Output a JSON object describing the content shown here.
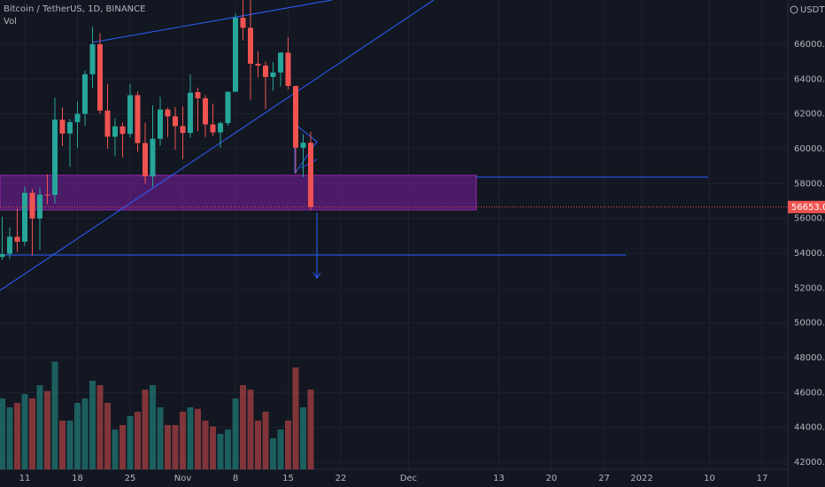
{
  "chart_data": {
    "type": "candlestick",
    "title": "Bitcoin / TetherUS, 1D, BINANCE",
    "volume_label": "Vol",
    "currency": "USDT",
    "up_color": "#26a69a",
    "down_color": "#ef5350",
    "x": [
      "Oct 8",
      "Oct 9",
      "Oct 10",
      "Oct 11",
      "Oct 12",
      "Oct 13",
      "Oct 14",
      "Oct 15",
      "Oct 16",
      "Oct 17",
      "Oct 18",
      "Oct 19",
      "Oct 20",
      "Oct 21",
      "Oct 22",
      "Oct 23",
      "Oct 24",
      "Oct 25",
      "Oct 26",
      "Oct 27",
      "Oct 28",
      "Oct 29",
      "Oct 30",
      "Oct 31",
      "Nov 1",
      "Nov 2",
      "Nov 3",
      "Nov 4",
      "Nov 5",
      "Nov 6",
      "Nov 7",
      "Nov 8",
      "Nov 9",
      "Nov 10",
      "Nov 11",
      "Nov 12",
      "Nov 13",
      "Nov 14",
      "Nov 15",
      "Nov 16",
      "Nov 17",
      "Nov 18"
    ],
    "open": [
      53785,
      53965,
      54942,
      54659,
      57471,
      55996,
      57370,
      57347,
      61672,
      60875,
      61528,
      62005,
      64280,
      66002,
      62193,
      60689,
      61286,
      60852,
      63079,
      60328,
      58413,
      60575,
      62253,
      61859,
      61300,
      60911,
      63254,
      62896,
      61395,
      60940,
      61470,
      63273,
      67525,
      66947,
      64882,
      64774,
      64122,
      64380,
      65519,
      63606,
      60059,
      60345
    ],
    "high": [
      56100,
      55489,
      56561,
      57839,
      57680,
      57777,
      58532,
      62933,
      62378,
      61718,
      62695,
      64486,
      67000,
      66639,
      63733,
      61747,
      61500,
      63710,
      63293,
      61496,
      62499,
      62980,
      62359,
      62405,
      62437,
      64270,
      63516,
      63086,
      62595,
      61560,
      63286,
      67789,
      68524,
      69000,
      65600,
      65000,
      64990,
      65550,
      66401,
      63617,
      60840,
      60977
    ],
    "low": [
      53617,
      53661,
      54080,
      54415,
      53879,
      54167,
      56818,
      56850,
      60150,
      58963,
      60048,
      61322,
      63482,
      62000,
      60000,
      59562,
      59510,
      60650,
      59817,
      58000,
      57820,
      60174,
      60673,
      59945,
      59405,
      60624,
      61000,
      60677,
      60721,
      60050,
      61322,
      63273,
      66222,
      62822,
      64100,
      62278,
      63333,
      63576,
      63400,
      58574,
      58373,
      56474
    ],
    "close": [
      53951,
      54949,
      54659,
      57471,
      55996,
      57367,
      57347,
      61672,
      60875,
      61528,
      62010,
      64280,
      66001,
      62193,
      60688,
      61286,
      60852,
      63078,
      60328,
      58413,
      60575,
      62253,
      61859,
      61300,
      60911,
      63219,
      62896,
      61395,
      60937,
      61470,
      63273,
      67525,
      66947,
      64882,
      64774,
      64122,
      64380,
      65519,
      63606,
      60058,
      60344,
      56653.01
    ],
    "volume": [
      48000,
      42000,
      45000,
      51000,
      48000,
      57000,
      53000,
      73000,
      33000,
      33000,
      45000,
      48000,
      60000,
      57000,
      45000,
      27000,
      30000,
      36000,
      39000,
      54000,
      57000,
      42000,
      30000,
      30000,
      39000,
      42000,
      41000,
      33000,
      29000,
      24000,
      27000,
      48000,
      57000,
      54000,
      33000,
      39000,
      21000,
      27000,
      33000,
      69000,
      42000,
      54000
    ],
    "ylim": [
      41590,
      68543
    ],
    "y2lim": [
      0,
      318000
    ],
    "yticks": [
      {
        "value": 42000,
        "label": "42000.00"
      },
      {
        "value": 44000,
        "label": "44000.00"
      },
      {
        "value": 46000,
        "label": "46000.00"
      },
      {
        "value": 48000,
        "label": "48000.00"
      },
      {
        "value": 50000,
        "label": "50000.00"
      },
      {
        "value": 52000,
        "label": "52000.00"
      },
      {
        "value": 54000,
        "label": "54000.00"
      },
      {
        "value": 56000,
        "label": "56000.00"
      },
      {
        "value": 58000,
        "label": "58000.00"
      },
      {
        "value": 60000,
        "label": "60000.00"
      },
      {
        "value": 62000,
        "label": "62000.00"
      },
      {
        "value": 64000,
        "label": "64000.00"
      },
      {
        "value": 66000,
        "label": "66000.00"
      }
    ],
    "xticks": [
      {
        "value": "Oct 11",
        "label": "11"
      },
      {
        "value": "Oct 18",
        "label": "18"
      },
      {
        "value": "Oct 25",
        "label": "25"
      },
      {
        "value": "Nov 1",
        "label": "Nov"
      },
      {
        "value": "Nov 8",
        "label": "8"
      },
      {
        "value": "Nov 15",
        "label": "15"
      },
      {
        "value": "Nov 22",
        "label": "22"
      },
      {
        "value": "Dec 1",
        "label": "Dec"
      },
      {
        "value": "Dec 13",
        "label": "13"
      },
      {
        "value": "Dec 20",
        "label": "20"
      },
      {
        "value": "Dec 27",
        "label": "27"
      },
      {
        "value": "Jan 1",
        "label": "2022"
      },
      {
        "value": "Jan 10",
        "label": "10"
      },
      {
        "value": "Jan 17",
        "label": "17"
      }
    ],
    "grid": true
  }
}
